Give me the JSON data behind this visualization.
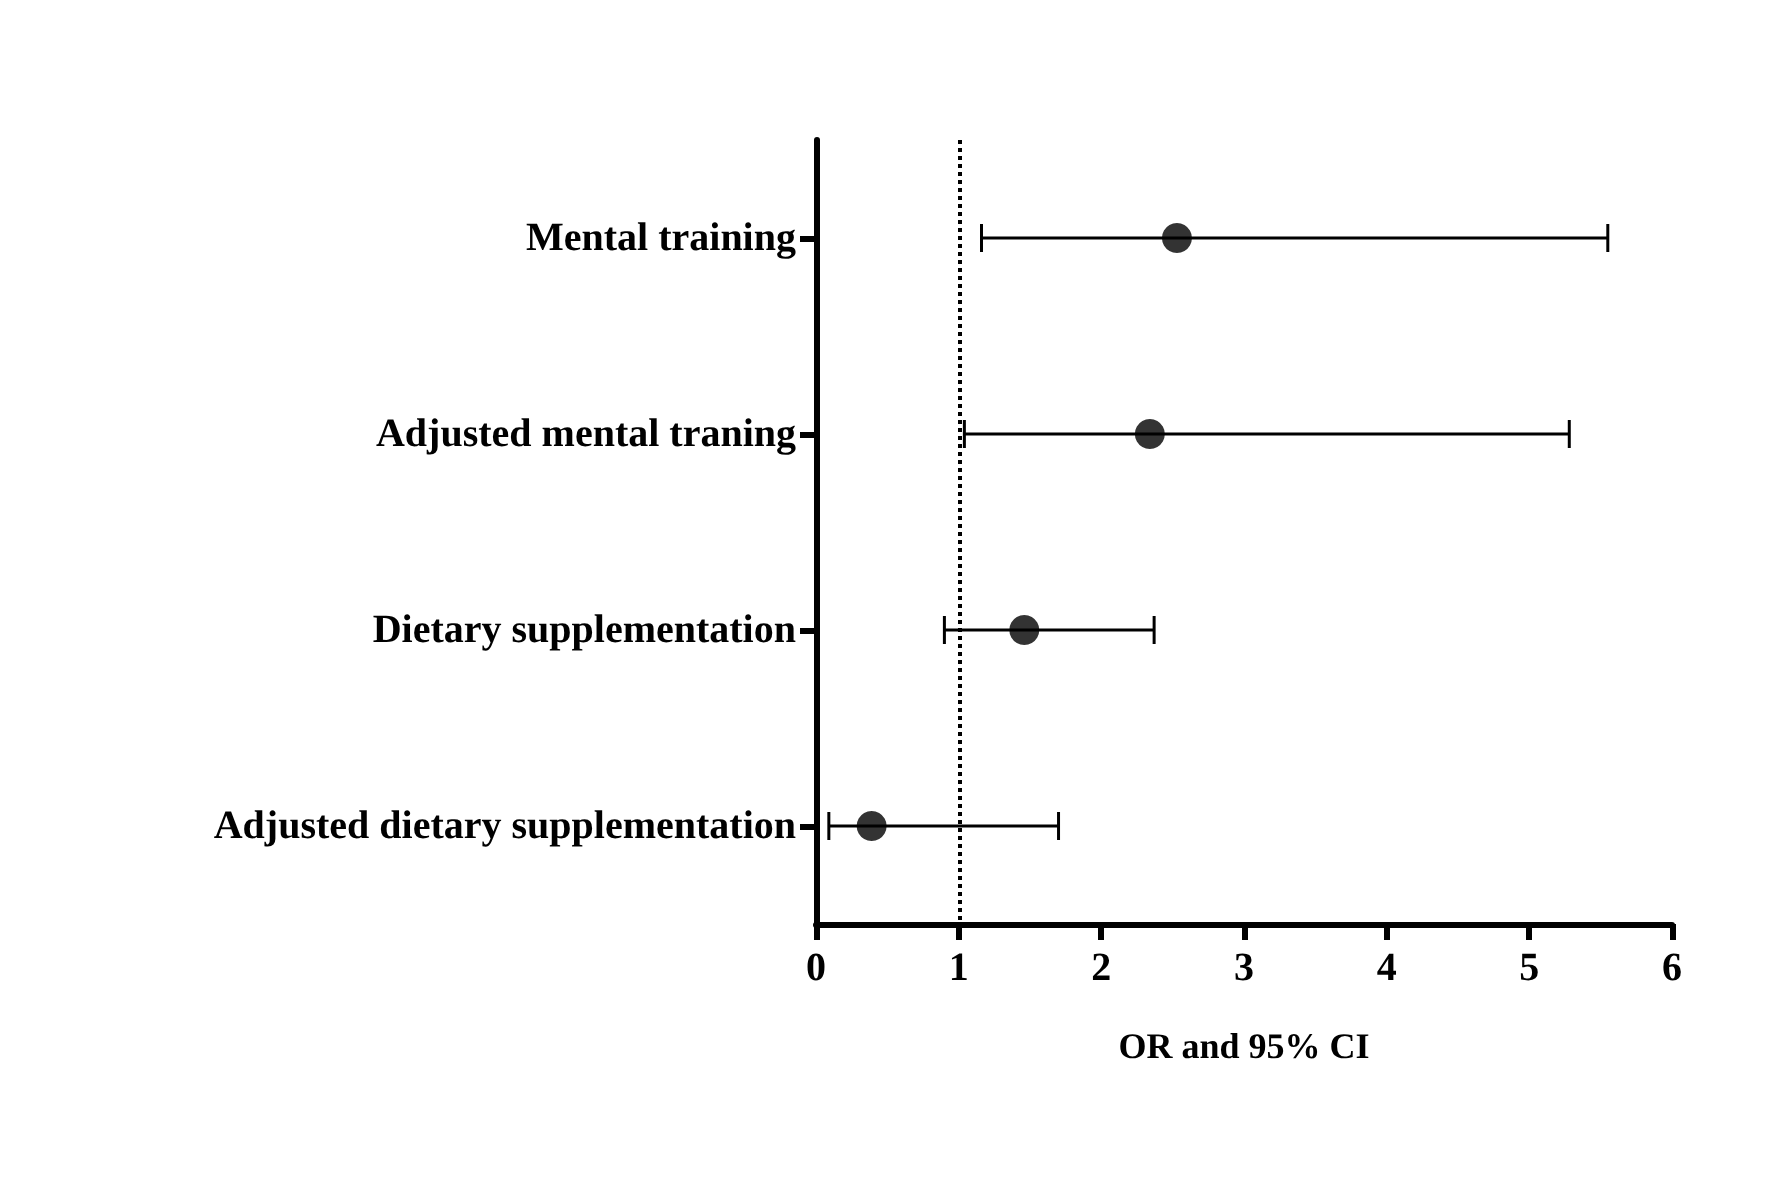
{
  "chart_data": {
    "type": "scatter",
    "orientation": "horizontal",
    "xlabel": "OR and 95% CI",
    "categories": [
      "Mental training",
      "Adjusted mental traning",
      "Dietary supplementation",
      "Adjusted dietary supplementation"
    ],
    "values": [
      2.53,
      2.34,
      1.46,
      0.39
    ],
    "errors": [
      [
        1.16,
        5.55
      ],
      [
        1.04,
        5.28
      ],
      [
        0.9,
        2.37
      ],
      [
        0.09,
        1.7
      ]
    ],
    "color": "#000000",
    "marker": "circle",
    "xlim": [
      0,
      6
    ],
    "xticks": [
      0,
      1,
      2,
      3,
      4,
      5,
      6
    ],
    "grid": false,
    "ref_lines": [
      {
        "axis": "x",
        "value": 1,
        "line_style": "dotted",
        "color": "#000000"
      }
    ]
  }
}
